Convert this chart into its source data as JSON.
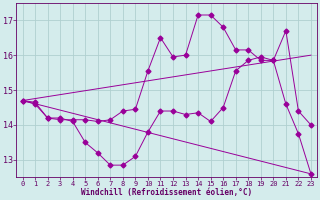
{
  "xlabel": "Windchill (Refroidissement éolien,°C)",
  "background_color": "#d4ecec",
  "grid_color": "#b0d0d0",
  "line_color": "#990099",
  "xlim": [
    -0.5,
    23.5
  ],
  "ylim": [
    12.5,
    17.5
  ],
  "yticks": [
    13,
    14,
    15,
    16,
    17
  ],
  "xticks": [
    0,
    1,
    2,
    3,
    4,
    5,
    6,
    7,
    8,
    9,
    10,
    11,
    12,
    13,
    14,
    15,
    16,
    17,
    18,
    19,
    20,
    21,
    22,
    23
  ],
  "curve1_x": [
    0,
    1,
    2,
    3,
    4,
    5,
    6,
    7,
    8,
    9,
    10,
    11,
    12,
    13,
    14,
    15,
    16,
    17,
    18,
    19,
    20,
    21,
    22,
    23
  ],
  "curve1_y": [
    14.7,
    14.6,
    14.2,
    14.2,
    14.1,
    13.5,
    13.2,
    12.85,
    12.85,
    13.1,
    13.8,
    14.4,
    14.4,
    14.3,
    14.35,
    14.1,
    14.5,
    15.55,
    15.85,
    15.95,
    15.85,
    14.6,
    13.75,
    12.6
  ],
  "curve2_x": [
    0,
    1,
    2,
    3,
    4,
    5,
    6,
    7,
    8,
    9,
    10,
    11,
    12,
    13,
    14,
    15,
    16,
    17,
    18,
    19,
    20,
    21,
    22,
    23
  ],
  "curve2_y": [
    14.7,
    14.65,
    14.2,
    14.15,
    14.15,
    14.15,
    14.1,
    14.15,
    14.4,
    14.45,
    15.55,
    16.5,
    15.95,
    16.0,
    17.15,
    17.15,
    16.8,
    16.15,
    16.15,
    15.85,
    15.85,
    16.7,
    14.4,
    14.0
  ],
  "curve3_x": [
    0,
    23
  ],
  "curve3_y": [
    14.7,
    16.0
  ],
  "curve4_x": [
    0,
    23
  ],
  "curve4_y": [
    14.7,
    12.6
  ],
  "markersize": 2.5
}
